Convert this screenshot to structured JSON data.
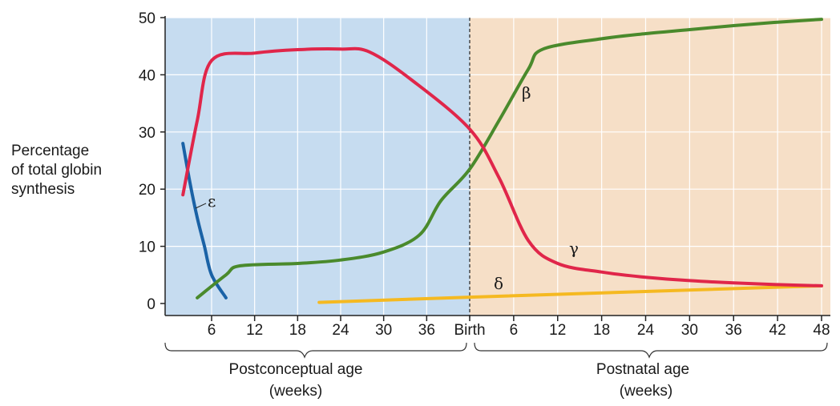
{
  "chart_data": {
    "type": "line",
    "ylabel": [
      "Percentage",
      "of total globin",
      "synthesis"
    ],
    "ylim": [
      0,
      50
    ],
    "yticks": [
      0,
      10,
      20,
      30,
      40,
      50
    ],
    "grid": true,
    "x_ticks": [
      "6",
      "12",
      "18",
      "24",
      "30",
      "36",
      "Birth",
      "6",
      "12",
      "18",
      "24",
      "30",
      "36",
      "42",
      "48"
    ],
    "regions": [
      {
        "name": "Postconceptual age",
        "unit": "(weeks)",
        "color": "#c6dcf0"
      },
      {
        "name": "Postnatal age",
        "unit": "(weeks)",
        "color": "#f6dfc7"
      }
    ],
    "series": [
      {
        "name": "ε",
        "color": "#1a62a6",
        "points": [
          {
            "x": "pre 2",
            "y": 28
          },
          {
            "x": "pre 3",
            "y": 21
          },
          {
            "x": "pre 4",
            "y": 15
          },
          {
            "x": "pre 5",
            "y": 10
          },
          {
            "x": "pre 6",
            "y": 5
          },
          {
            "x": "pre 8",
            "y": 1
          }
        ]
      },
      {
        "name": "γ",
        "color": "#e0264a",
        "points": [
          {
            "x": "pre 2",
            "y": 19
          },
          {
            "x": "pre 4",
            "y": 32
          },
          {
            "x": "pre 6",
            "y": 42.5
          },
          {
            "x": "pre 12",
            "y": 43.8
          },
          {
            "x": "pre 18",
            "y": 44.4
          },
          {
            "x": "pre 24",
            "y": 44.5
          },
          {
            "x": "pre 28",
            "y": 44
          },
          {
            "x": "pre 34",
            "y": 39
          },
          {
            "x": "Birth",
            "y": 30.5
          },
          {
            "x": "post 4",
            "y": 22
          },
          {
            "x": "post 8",
            "y": 11
          },
          {
            "x": "post 12",
            "y": 7
          },
          {
            "x": "post 18",
            "y": 5.5
          },
          {
            "x": "post 24",
            "y": 4.6
          },
          {
            "x": "post 30",
            "y": 4
          },
          {
            "x": "post 36",
            "y": 3.6
          },
          {
            "x": "post 42",
            "y": 3.3
          },
          {
            "x": "post 48",
            "y": 3.1
          }
        ]
      },
      {
        "name": "β",
        "color": "#4a8a2c",
        "points": [
          {
            "x": "pre 4",
            "y": 1
          },
          {
            "x": "pre 8",
            "y": 5
          },
          {
            "x": "pre 10",
            "y": 6.6
          },
          {
            "x": "pre 18",
            "y": 7
          },
          {
            "x": "pre 24",
            "y": 7.6
          },
          {
            "x": "pre 30",
            "y": 9
          },
          {
            "x": "pre 35",
            "y": 12
          },
          {
            "x": "pre 38",
            "y": 18
          },
          {
            "x": "Birth",
            "y": 23.5
          },
          {
            "x": "post 4",
            "y": 32
          },
          {
            "x": "post 8",
            "y": 41
          },
          {
            "x": "post 10",
            "y": 44.5
          },
          {
            "x": "post 18",
            "y": 46.3
          },
          {
            "x": "post 24",
            "y": 47.2
          },
          {
            "x": "post 30",
            "y": 47.9
          },
          {
            "x": "post 36",
            "y": 48.6
          },
          {
            "x": "post 42",
            "y": 49.2
          },
          {
            "x": "post 48",
            "y": 49.7
          }
        ]
      },
      {
        "name": "δ",
        "color": "#f5b921",
        "points": [
          {
            "x": "pre 21",
            "y": 0.2
          },
          {
            "x": "Birth",
            "y": 1.1
          },
          {
            "x": "post 48",
            "y": 3.1
          }
        ]
      }
    ]
  }
}
